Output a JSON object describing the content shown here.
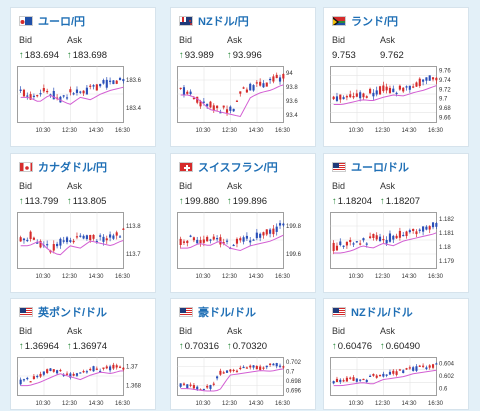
{
  "labels": {
    "bid": "Bid",
    "ask": "Ask"
  },
  "colors": {
    "title": "#1f6fb5",
    "up_candle": "#d62b2b",
    "down_candle": "#2a4fb8",
    "ma_line": "#d35fd3"
  },
  "cards": [
    {
      "name": "eur-jpy",
      "title": "ユーロ/円",
      "flag": "eu",
      "show_arrow": true,
      "bid": "183.694",
      "ask": "183.698",
      "ticks": [
        "183.6",
        "183.4"
      ],
      "xticks": [
        "10:30",
        "12:30",
        "14:30",
        "16:30"
      ],
      "trend": [
        0.55,
        0.45,
        0.6,
        0.5,
        0.4,
        0.55,
        0.5,
        0.62,
        0.7,
        0.75,
        0.8
      ]
    },
    {
      "name": "nzd-jpy",
      "title": "NZドル/円",
      "flag": "nz",
      "show_arrow": true,
      "bid": "93.989",
      "ask": "93.996",
      "ticks": [
        "94",
        "93.8",
        "93.6",
        "93.4"
      ],
      "xticks": [
        "10:30",
        "12:30",
        "14:30",
        "16:30"
      ],
      "trend": [
        0.6,
        0.5,
        0.3,
        0.25,
        0.2,
        0.15,
        0.55,
        0.65,
        0.7,
        0.8,
        0.85
      ]
    },
    {
      "name": "zar-jpy",
      "title": "ランド/円",
      "flag": "za",
      "show_arrow": false,
      "bid": "9.753",
      "ask": "9.762",
      "ticks": [
        "9.76",
        "9.74",
        "9.72",
        "9.7",
        "9.68",
        "9.66"
      ],
      "xticks": [
        "10:30",
        "12:30",
        "14:30",
        "16:30"
      ],
      "trend": [
        0.4,
        0.45,
        0.5,
        0.48,
        0.55,
        0.6,
        0.58,
        0.65,
        0.7,
        0.78,
        0.85
      ]
    },
    {
      "name": "cad-jpy",
      "title": "カナダドル/円",
      "flag": "ca",
      "show_arrow": true,
      "bid": "113.799",
      "ask": "113.805",
      "ticks": [
        "113.8",
        "113.7"
      ],
      "xticks": [
        "10:30",
        "12:30",
        "14:30",
        "16:30"
      ],
      "trend": [
        0.5,
        0.6,
        0.4,
        0.3,
        0.5,
        0.45,
        0.6,
        0.55,
        0.5,
        0.6,
        0.65
      ]
    },
    {
      "name": "chf-jpy",
      "title": "スイスフラン/円",
      "flag": "ch",
      "show_arrow": true,
      "bid": "199.880",
      "ask": "199.896",
      "ticks": [
        "199.8",
        "199.6"
      ],
      "xticks": [
        "10:30",
        "12:30",
        "14:30",
        "16:30"
      ],
      "trend": [
        0.45,
        0.55,
        0.5,
        0.6,
        0.45,
        0.4,
        0.5,
        0.55,
        0.6,
        0.7,
        0.8
      ]
    },
    {
      "name": "eur-usd",
      "title": "ユーロ/ドル",
      "flag": "us",
      "show_arrow": true,
      "bid": "1.18204",
      "ask": "1.18207",
      "ticks": [
        "1.182",
        "1.181",
        "1.18",
        "1.179"
      ],
      "xticks": [
        "10:30",
        "12:30",
        "14:30",
        "16:30"
      ],
      "trend": [
        0.35,
        0.4,
        0.5,
        0.45,
        0.55,
        0.5,
        0.6,
        0.65,
        0.7,
        0.75,
        0.85
      ]
    },
    {
      "name": "gbp-usd",
      "title": "英ポンド/ドル",
      "flag": "us",
      "show_arrow": true,
      "bid": "1.36964",
      "ask": "1.36974",
      "ticks": [
        "1.37",
        "1.368"
      ],
      "xticks": [
        "10:30",
        "12:30",
        "14:30",
        "16:30"
      ],
      "trend": [
        0.3,
        0.4,
        0.55,
        0.7,
        0.6,
        0.5,
        0.65,
        0.75,
        0.7,
        0.8,
        0.75
      ]
    },
    {
      "name": "aud-usd",
      "title": "豪ドル/ドル",
      "flag": "us",
      "show_arrow": true,
      "bid": "0.70316",
      "ask": "0.70320",
      "ticks": [
        "0.702",
        "0.7",
        "0.698",
        "0.696"
      ],
      "xticks": [
        "10:30",
        "12:30",
        "14:30",
        "16:30"
      ],
      "trend": [
        0.2,
        0.15,
        0.1,
        0.15,
        0.65,
        0.7,
        0.75,
        0.8,
        0.78,
        0.85,
        0.88
      ]
    },
    {
      "name": "nzd-usd",
      "title": "NZドル/ドル",
      "flag": "us",
      "show_arrow": true,
      "bid": "0.60476",
      "ask": "0.60490",
      "ticks": [
        "0.604",
        "0.602",
        "0.6"
      ],
      "xticks": [
        "10:30",
        "12:30",
        "14:30",
        "16:30"
      ],
      "trend": [
        0.3,
        0.35,
        0.4,
        0.35,
        0.5,
        0.55,
        0.6,
        0.7,
        0.75,
        0.8,
        0.85
      ]
    }
  ]
}
